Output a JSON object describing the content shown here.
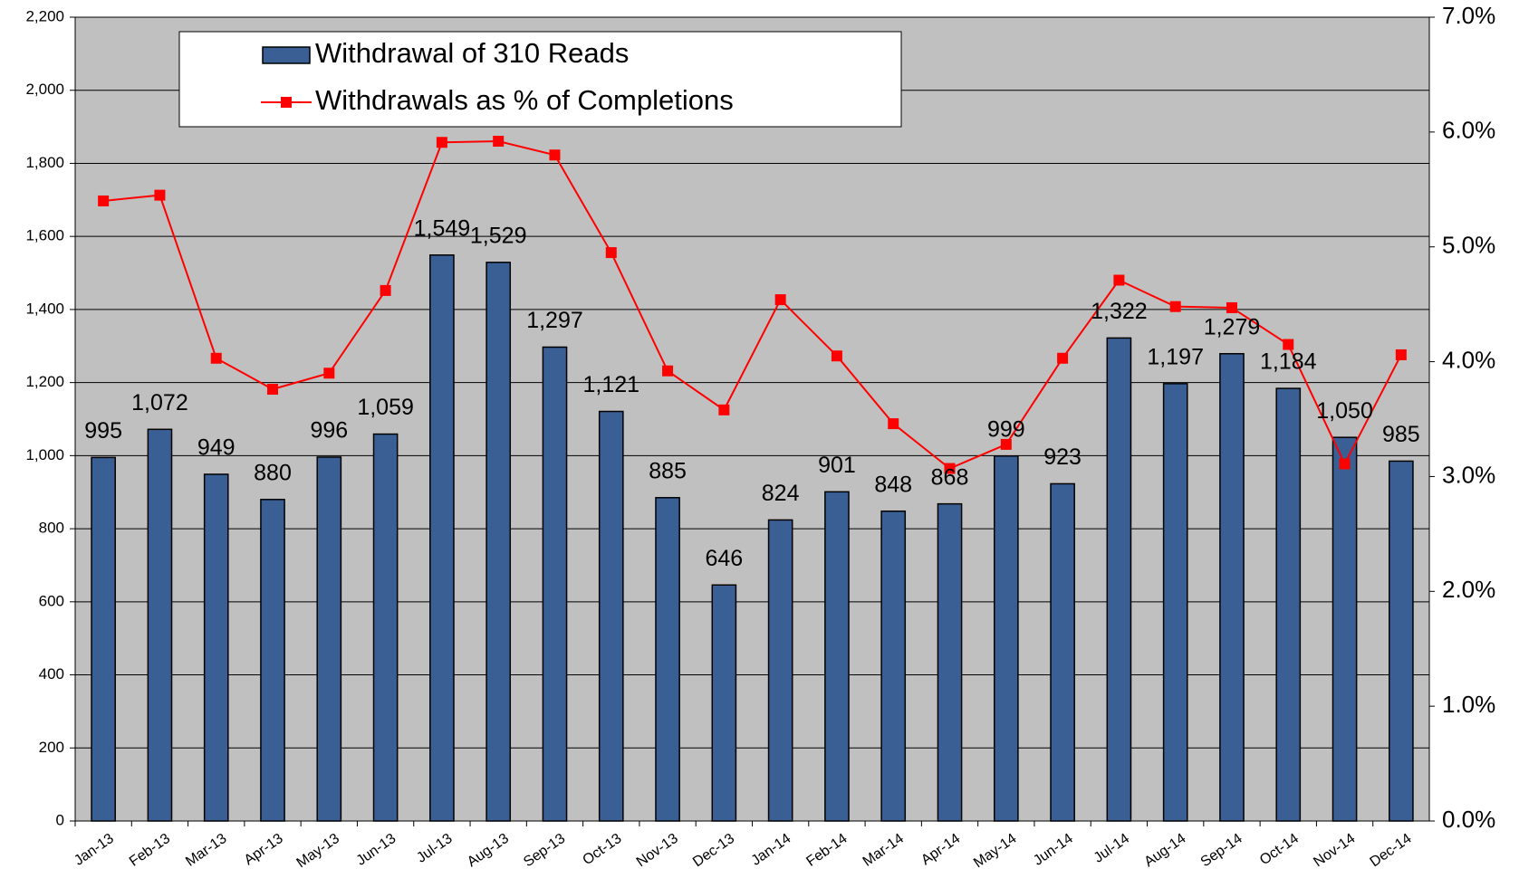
{
  "chart_data": {
    "type": "bar_line",
    "categories": [
      "Jan-13",
      "Feb-13",
      "Mar-13",
      "Apr-13",
      "May-13",
      "Jun-13",
      "Jul-13",
      "Aug-13",
      "Sep-13",
      "Oct-13",
      "Nov-13",
      "Dec-13",
      "Jan-14",
      "Feb-14",
      "Mar-14",
      "Apr-14",
      "May-14",
      "Jun-14",
      "Jul-14",
      "Aug-14",
      "Sep-14",
      "Oct-14",
      "Nov-14",
      "Dec-14"
    ],
    "series": [
      {
        "name": "Withdrawal of 310 Reads",
        "type": "bar",
        "color": "#3a5f95",
        "values": [
          995,
          1072,
          949,
          880,
          996,
          1059,
          1549,
          1529,
          1297,
          1121,
          885,
          646,
          824,
          901,
          848,
          868,
          999,
          923,
          1322,
          1197,
          1279,
          1184,
          1050,
          985
        ],
        "value_labels": [
          "995",
          "1,072",
          "949",
          "880",
          "996",
          "1,059",
          "1,549",
          "1,529",
          "1,297",
          "1,121",
          "885",
          "646",
          "824",
          "901",
          "848",
          "868",
          "999",
          "923",
          "1,322",
          "1,197",
          "1,279",
          "1,184",
          "1,050",
          "985"
        ]
      },
      {
        "name": "Withdrawals as % of Completions",
        "type": "line",
        "axis": "y2",
        "color": "#ff0000",
        "values": [
          5.4,
          5.45,
          4.03,
          3.76,
          3.9,
          4.62,
          5.91,
          5.92,
          5.8,
          4.95,
          3.92,
          3.58,
          4.54,
          4.05,
          3.46,
          3.07,
          3.28,
          4.03,
          4.71,
          4.48,
          4.47,
          4.15,
          3.11,
          4.06
        ]
      }
    ],
    "ylim": [
      0,
      2200
    ],
    "yticks": [
      0,
      200,
      400,
      600,
      800,
      {
        "value": 1000,
        "label": "1,000"
      },
      {
        "value": 1200,
        "label": "1,200"
      },
      {
        "value": 1400,
        "label": "1,400"
      },
      {
        "value": 1600,
        "label": "1,600"
      },
      {
        "value": 1800,
        "label": "1,800"
      },
      {
        "value": 2000,
        "label": "2,000"
      },
      {
        "value": 2200,
        "label": "2,200"
      }
    ],
    "y2lim": [
      0,
      7
    ],
    "y2ticks": [
      {
        "value": 0,
        "label": "0.0%"
      },
      {
        "value": 1,
        "label": "1.0%"
      },
      {
        "value": 2,
        "label": "2.0%"
      },
      {
        "value": 3,
        "label": "3.0%"
      },
      {
        "value": 4,
        "label": "4.0%"
      },
      {
        "value": 5,
        "label": "5.0%"
      },
      {
        "value": 6,
        "label": "6.0%"
      },
      {
        "value": 7,
        "label": "7.0%"
      }
    ],
    "grid": true
  }
}
